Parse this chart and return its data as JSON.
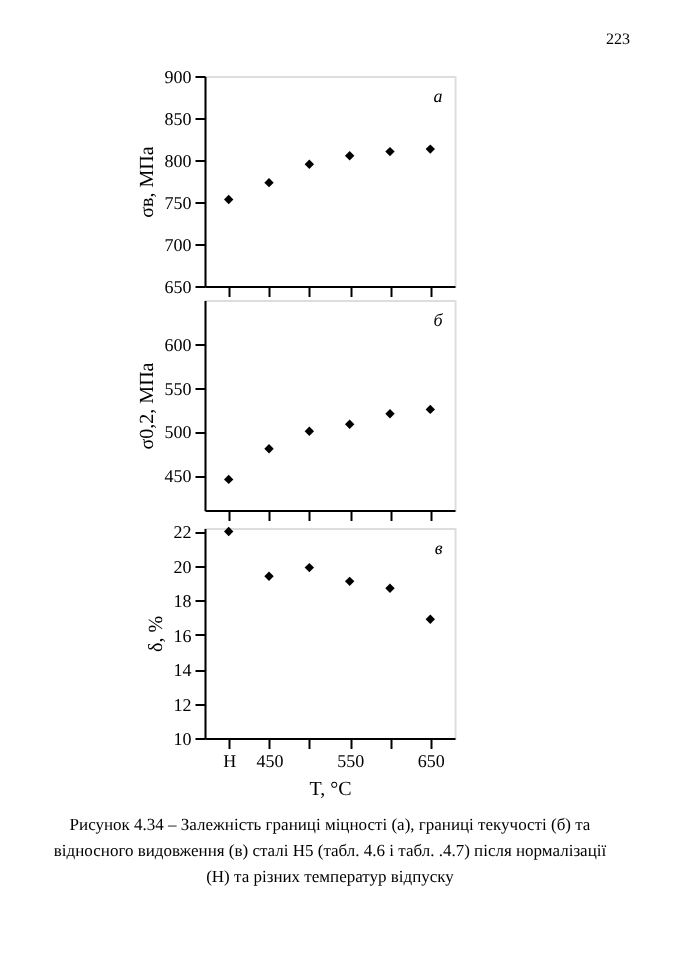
{
  "chart_data": [
    {
      "type": "scatter",
      "ylabel": "σв, МПа",
      "ylim": [
        650,
        900
      ],
      "yticks": [
        650,
        700,
        750,
        800,
        850,
        900
      ],
      "series": [
        {
          "color": "#000000",
          "values": [
            753,
            773,
            795,
            805,
            810,
            813
          ]
        }
      ],
      "marker": "diamond",
      "grid": false,
      "tick_labels": "y",
      "annotations": [
        "а",
        "223"
      ]
    },
    {
      "type": "scatter",
      "ylabel": "σ0,2, МПа",
      "ylim": [
        410,
        650
      ],
      "yticks": [
        450,
        500,
        550,
        600
      ],
      "series": [
        {
          "color": "#000000",
          "values": [
            445,
            480,
            500,
            508,
            520,
            525
          ]
        }
      ],
      "marker": "diamond",
      "grid": false,
      "tick_labels": "y",
      "annotations": [
        "б"
      ]
    },
    {
      "type": "scatter",
      "categories": [
        "Н",
        "450",
        null,
        "550",
        null,
        "650"
      ],
      "xlabel": "T, °C",
      "ylabel": "δ, %",
      "ylim": [
        10,
        22.2
      ],
      "yticks": [
        10,
        12,
        14,
        16,
        18,
        20,
        22
      ],
      "series": [
        {
          "color": "#000000",
          "values": [
            22,
            19.4,
            19.9,
            19.1,
            18.7,
            16.9
          ]
        }
      ],
      "marker": "diamond",
      "grid": false,
      "annotations": [
        "в",
        "Рисунок 4.34 – Залежність границі міцності (а), границі текучості (б) та відносного видовження (в) сталі Н5 (табл. 4.6 і табл. .4.7) після нормалізації (Н) та різних температур відпуску"
      ]
    }
  ]
}
